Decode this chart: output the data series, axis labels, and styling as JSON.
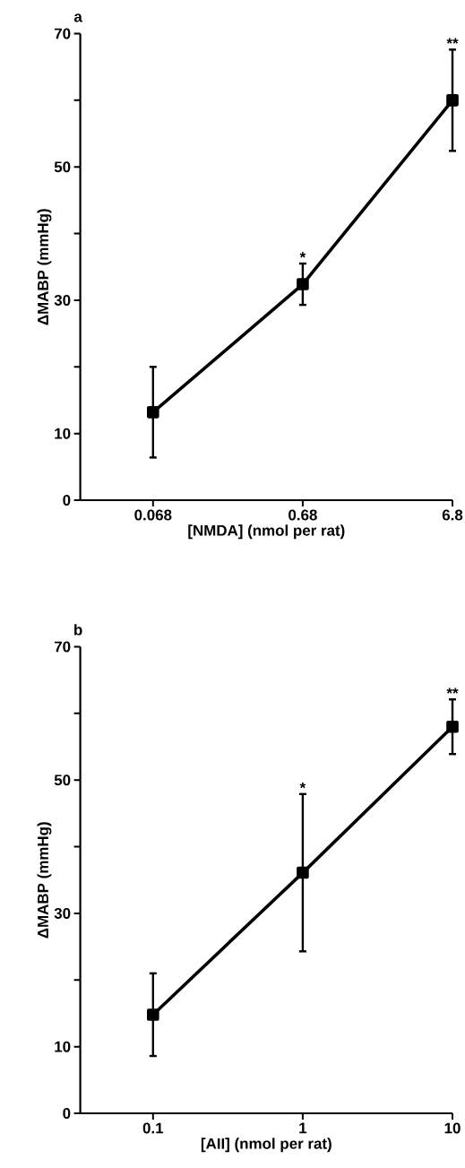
{
  "chart_data": [
    {
      "type": "line",
      "title": "a",
      "xlabel": "[NMDA] (nmol per rat)",
      "ylabel": "ΔMABP (mmHg)",
      "categories": [
        "0.068",
        "0.68",
        "6.8"
      ],
      "series": [
        {
          "color": "#000000",
          "values": [
            13.2,
            32.4,
            60.0
          ],
          "errors": [
            6.8,
            3.1,
            7.6
          ]
        }
      ],
      "ylim": [
        0,
        70
      ],
      "yticks": [
        0,
        10,
        {
          "value": 20,
          "label": null
        },
        30,
        {
          "value": 40,
          "label": null
        },
        50,
        {
          "value": 60,
          "label": null
        },
        70
      ],
      "marker": "square",
      "line_style": "solid",
      "grid": false,
      "annotations": [
        "*",
        "**"
      ]
    },
    {
      "type": "line",
      "title": "b",
      "xlabel": "[AII] (nmol per rat)",
      "ylabel": "ΔMABP (mmHg)",
      "categories": [
        "0.1",
        "1",
        "10"
      ],
      "series": [
        {
          "color": "#000000",
          "values": [
            14.8,
            36.1,
            58.0
          ],
          "errors": [
            6.2,
            11.8,
            4.1
          ]
        }
      ],
      "ylim": [
        0,
        70
      ],
      "yticks": [
        0,
        10,
        {
          "value": 20,
          "label": null
        },
        30,
        {
          "value": 40,
          "label": null
        },
        50,
        {
          "value": 60,
          "label": null
        },
        70
      ],
      "marker": "square",
      "line_style": "solid",
      "grid": false,
      "annotations": [
        "*",
        "**"
      ]
    }
  ]
}
